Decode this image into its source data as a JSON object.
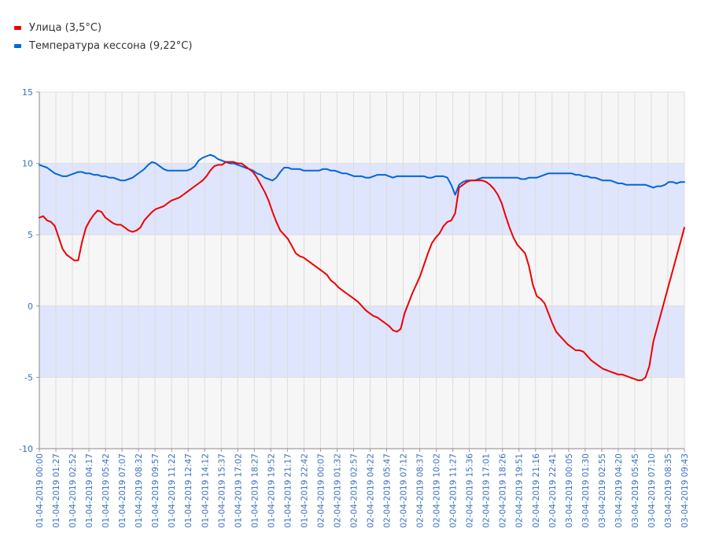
{
  "legend": {
    "items": [
      {
        "label": "Улица (3,5°C)",
        "color": "#ee0000"
      },
      {
        "label": "Температура кессона (9,22°C)",
        "color": "#0066dd"
      }
    ]
  },
  "colors": {
    "band_blue": "#dfe5fc",
    "band_gray": "#f6f6f6",
    "grid": "#dddddd",
    "tick_text": "#3a6fc0"
  },
  "chart_data": {
    "type": "line",
    "title": "",
    "xlabel": "",
    "ylabel": "",
    "ylim": [
      -10,
      15
    ],
    "yticks": [
      15,
      10,
      5,
      0,
      -5,
      -10
    ],
    "x_ticks": [
      "01-04-2019 00:00",
      "01-04-2019 01:27",
      "01-04-2019 02:52",
      "01-04-2019 04:17",
      "01-04-2019 05:42",
      "01-04-2019 07:07",
      "01-04-2019 08:32",
      "01-04-2019 09:57",
      "01-04-2019 11:22",
      "01-04-2019 12:47",
      "01-04-2019 14:12",
      "01-04-2019 15:37",
      "01-04-2019 17:02",
      "01-04-2019 18:27",
      "01-04-2019 19:52",
      "01-04-2019 21:17",
      "01-04-2019 22:42",
      "02-04-2019 00:07",
      "02-04-2019 01:32",
      "02-04-2019 02:57",
      "02-04-2019 04:22",
      "02-04-2019 05:47",
      "02-04-2019 07:12",
      "02-04-2019 08:37",
      "02-04-2019 10:02",
      "02-04-2019 11:27",
      "02-04-2019 15:36",
      "02-04-2019 17:01",
      "02-04-2019 18:26",
      "02-04-2019 19:51",
      "02-04-2019 21:16",
      "02-04-2019 22:41",
      "03-04-2019 00:05",
      "03-04-2019 01:30",
      "03-04-2019 02:55",
      "03-04-2019 04:20",
      "03-04-2019 05:45",
      "03-04-2019 07:10",
      "03-04-2019 08:35",
      "03-04-2019 09:43"
    ],
    "series": [
      {
        "name": "Улица (3,5°C)",
        "color": "#ee0000",
        "values": [
          6.2,
          6.3,
          6.0,
          5.9,
          5.6,
          4.8,
          4.0,
          3.6,
          3.4,
          3.2,
          3.2,
          4.5,
          5.5,
          6.0,
          6.4,
          6.7,
          6.6,
          6.2,
          6.0,
          5.8,
          5.7,
          5.7,
          5.5,
          5.3,
          5.2,
          5.3,
          5.5,
          6.0,
          6.3,
          6.6,
          6.8,
          6.9,
          7.0,
          7.2,
          7.4,
          7.5,
          7.6,
          7.8,
          8.0,
          8.2,
          8.4,
          8.6,
          8.8,
          9.1,
          9.5,
          9.8,
          9.9,
          9.9,
          10.1,
          10.1,
          10.1,
          10.0,
          10.0,
          9.8,
          9.6,
          9.4,
          9.0,
          8.5,
          8.0,
          7.4,
          6.6,
          5.9,
          5.3,
          5.0,
          4.7,
          4.2,
          3.7,
          3.5,
          3.4,
          3.2,
          3.0,
          2.8,
          2.6,
          2.4,
          2.2,
          1.8,
          1.6,
          1.3,
          1.1,
          0.9,
          0.7,
          0.5,
          0.3,
          0.0,
          -0.3,
          -0.5,
          -0.7,
          -0.8,
          -1.0,
          -1.2,
          -1.4,
          -1.7,
          -1.8,
          -1.6,
          -0.5,
          0.2,
          0.9,
          1.5,
          2.1,
          2.9,
          3.7,
          4.4,
          4.8,
          5.1,
          5.6,
          5.9,
          6.0,
          6.5,
          8.3,
          8.5,
          8.7,
          8.8,
          8.8,
          8.8,
          8.8,
          8.7,
          8.5,
          8.2,
          7.8,
          7.2,
          6.3,
          5.5,
          4.8,
          4.3,
          4.0,
          3.7,
          2.8,
          1.5,
          0.7,
          0.5,
          0.2,
          -0.5,
          -1.2,
          -1.8,
          -2.1,
          -2.4,
          -2.7,
          -2.9,
          -3.1,
          -3.1,
          -3.2,
          -3.5,
          -3.8,
          -4.0,
          -4.2,
          -4.4,
          -4.5,
          -4.6,
          -4.7,
          -4.8,
          -4.8,
          -4.9,
          -5.0,
          -5.1,
          -5.2,
          -5.2,
          -5.0,
          -4.2,
          -2.5,
          -1.5,
          -0.5,
          0.5,
          1.5,
          2.5,
          3.5,
          4.5,
          5.5
        ]
      },
      {
        "name": "Температура кессона (9,22°C)",
        "color": "#0066dd",
        "values": [
          9.9,
          9.8,
          9.7,
          9.5,
          9.3,
          9.2,
          9.1,
          9.1,
          9.2,
          9.3,
          9.4,
          9.4,
          9.3,
          9.3,
          9.2,
          9.2,
          9.1,
          9.1,
          9.0,
          9.0,
          8.9,
          8.8,
          8.8,
          8.9,
          9.0,
          9.2,
          9.4,
          9.6,
          9.9,
          10.1,
          10.0,
          9.8,
          9.6,
          9.5,
          9.5,
          9.5,
          9.5,
          9.5,
          9.5,
          9.6,
          9.8,
          10.2,
          10.4,
          10.5,
          10.6,
          10.5,
          10.3,
          10.2,
          10.1,
          10.0,
          10.0,
          9.9,
          9.8,
          9.7,
          9.6,
          9.5,
          9.3,
          9.2,
          9.0,
          8.9,
          8.8,
          9.0,
          9.4,
          9.7,
          9.7,
          9.6,
          9.6,
          9.6,
          9.5,
          9.5,
          9.5,
          9.5,
          9.5,
          9.6,
          9.6,
          9.5,
          9.5,
          9.4,
          9.3,
          9.3,
          9.2,
          9.1,
          9.1,
          9.1,
          9.0,
          9.0,
          9.1,
          9.2,
          9.2,
          9.2,
          9.1,
          9.0,
          9.1,
          9.1,
          9.1,
          9.1,
          9.1,
          9.1,
          9.1,
          9.1,
          9.0,
          9.0,
          9.1,
          9.1,
          9.1,
          9.0,
          8.5,
          7.8,
          8.5,
          8.7,
          8.8,
          8.8,
          8.8,
          8.9,
          9.0,
          9.0,
          9.0,
          9.0,
          9.0,
          9.0,
          9.0,
          9.0,
          9.0,
          9.0,
          8.9,
          8.9,
          9.0,
          9.0,
          9.0,
          9.1,
          9.2,
          9.3,
          9.3,
          9.3,
          9.3,
          9.3,
          9.3,
          9.3,
          9.2,
          9.2,
          9.1,
          9.1,
          9.0,
          9.0,
          8.9,
          8.8,
          8.8,
          8.8,
          8.7,
          8.6,
          8.6,
          8.5,
          8.5,
          8.5,
          8.5,
          8.5,
          8.5,
          8.4,
          8.3,
          8.4,
          8.4,
          8.5,
          8.7,
          8.7,
          8.6,
          8.7,
          8.7
        ]
      }
    ]
  }
}
